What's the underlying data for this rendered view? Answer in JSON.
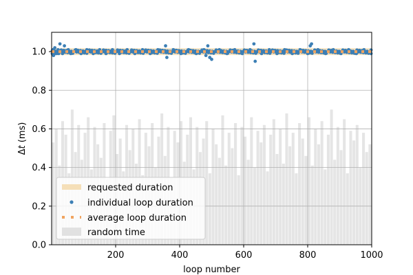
{
  "chart_data": {
    "type": "scatter",
    "xlabel": "loop number",
    "ylabel_prefix": "Δ",
    "ylabel_var": "t",
    "ylabel_suffix": " (ms)",
    "xlim": [
      0,
      1000
    ],
    "ylim": [
      0.0,
      1.1
    ],
    "x_ticks": [
      200,
      400,
      600,
      800,
      1000
    ],
    "y_ticks": [
      0.0,
      0.2,
      0.4,
      0.6,
      0.8,
      1.0
    ],
    "x_tick_labels": [
      "200",
      "400",
      "600",
      "800",
      "1000"
    ],
    "y_tick_labels": [
      "0.0",
      "0.2",
      "0.4",
      "0.6",
      "0.8",
      "1.0"
    ],
    "grid": true,
    "legend_position": "lower-left",
    "requested_duration": 1.0,
    "average_loop_duration": 1.0,
    "individual_loop_duration": {
      "x": [
        2,
        4,
        6,
        8,
        10,
        12,
        14,
        16,
        18,
        20,
        22,
        26,
        30,
        34,
        40,
        46,
        52,
        60,
        68,
        76,
        84,
        92,
        100,
        110,
        120,
        130,
        140,
        150,
        160,
        170,
        180,
        190,
        200,
        212,
        224,
        236,
        248,
        260,
        272,
        284,
        296,
        308,
        320,
        332,
        344,
        356,
        360,
        368,
        380,
        392,
        404,
        416,
        428,
        440,
        452,
        464,
        476,
        482,
        488,
        494,
        500,
        512,
        524,
        536,
        548,
        560,
        572,
        584,
        596,
        608,
        620,
        632,
        636,
        644,
        656,
        668,
        680,
        692,
        704,
        716,
        728,
        740,
        752,
        764,
        776,
        788,
        800,
        808,
        812,
        820,
        832,
        844,
        856,
        868,
        880,
        892,
        904,
        916,
        928,
        940,
        952,
        964,
        976,
        988,
        998
      ],
      "y": [
        0.99,
        1.01,
        0.98,
        1.0,
        1.02,
        0.99,
        1.0,
        0.99,
        1.0,
        1.01,
        0.99,
        1.04,
        1.0,
        0.99,
        1.03,
        1.0,
        1.01,
        0.99,
        1.0,
        1.01,
        1.0,
        0.99,
        1.0,
        1.01,
        1.0,
        0.99,
        1.0,
        1.01,
        1.0,
        0.99,
        1.0,
        1.01,
        1.0,
        0.99,
        1.0,
        1.01,
        1.0,
        0.99,
        1.0,
        1.01,
        1.0,
        0.99,
        1.0,
        1.01,
        1.0,
        1.03,
        0.97,
        1.0,
        1.01,
        1.0,
        0.99,
        1.0,
        1.01,
        1.0,
        0.99,
        1.0,
        1.01,
        0.98,
        1.03,
        0.97,
        0.96,
        1.0,
        1.01,
        1.0,
        0.99,
        1.0,
        1.01,
        1.0,
        0.99,
        1.0,
        1.01,
        1.04,
        0.95,
        1.0,
        0.99,
        1.0,
        1.01,
        1.0,
        0.99,
        1.0,
        1.01,
        1.0,
        0.99,
        1.0,
        1.01,
        1.0,
        0.99,
        1.03,
        1.04,
        1.0,
        1.01,
        1.0,
        0.99,
        1.0,
        1.01,
        1.0,
        0.99,
        1.0,
        1.01,
        1.0,
        0.99,
        1.0,
        1.01,
        1.0,
        0.99
      ]
    },
    "random_time_sample": {
      "x": [
        0,
        10,
        20,
        30,
        40,
        50,
        60,
        70,
        80,
        90,
        100,
        110,
        120,
        130,
        140,
        150,
        160,
        170,
        180,
        190,
        200,
        210,
        220,
        230,
        240,
        250,
        260,
        270,
        280,
        290,
        300,
        310,
        320,
        330,
        340,
        350,
        360,
        370,
        380,
        390,
        400,
        410,
        420,
        430,
        440,
        450,
        460,
        470,
        480,
        490,
        500,
        510,
        520,
        530,
        540,
        550,
        560,
        570,
        580,
        590,
        600,
        610,
        620,
        630,
        640,
        650,
        660,
        670,
        680,
        690,
        700,
        710,
        720,
        730,
        740,
        750,
        760,
        770,
        780,
        790,
        800,
        810,
        820,
        830,
        840,
        850,
        860,
        870,
        880,
        890,
        900,
        910,
        920,
        930,
        940,
        950,
        960,
        970,
        980,
        990
      ],
      "y": [
        0.53,
        0.6,
        0.41,
        0.64,
        0.57,
        0.37,
        0.7,
        0.48,
        0.62,
        0.44,
        0.58,
        0.66,
        0.39,
        0.61,
        0.52,
        0.45,
        0.63,
        0.34,
        0.59,
        0.67,
        0.47,
        0.55,
        0.38,
        0.62,
        0.49,
        0.6,
        0.42,
        0.65,
        0.36,
        0.58,
        0.51,
        0.63,
        0.4,
        0.56,
        0.68,
        0.46,
        0.61,
        0.35,
        0.59,
        0.53,
        0.64,
        0.43,
        0.57,
        0.66,
        0.39,
        0.61,
        0.48,
        0.55,
        0.64,
        0.37,
        0.6,
        0.52,
        0.45,
        0.67,
        0.41,
        0.58,
        0.5,
        0.63,
        0.36,
        0.61,
        0.56,
        0.44,
        0.66,
        0.4,
        0.59,
        0.53,
        0.62,
        0.38,
        0.57,
        0.65,
        0.47,
        0.6,
        0.42,
        0.68,
        0.51,
        0.58,
        0.37,
        0.63,
        0.55,
        0.46,
        0.66,
        0.41,
        0.6,
        0.52,
        0.64,
        0.39,
        0.57,
        0.7,
        0.44,
        0.61,
        0.49,
        0.65,
        0.37,
        0.59,
        0.54,
        0.62,
        0.4,
        0.58,
        0.48,
        0.52
      ]
    }
  },
  "legend": {
    "requested": "requested duration",
    "individual": "individual loop duration",
    "average": "average loop duration",
    "random": "random time"
  },
  "colors": {
    "requested": "#f5dfb8",
    "individual": "#3c7fb5",
    "average": "#f0a460",
    "random": "#e1e1e1",
    "grid": "#b0b0b0",
    "axis": "#000000"
  }
}
